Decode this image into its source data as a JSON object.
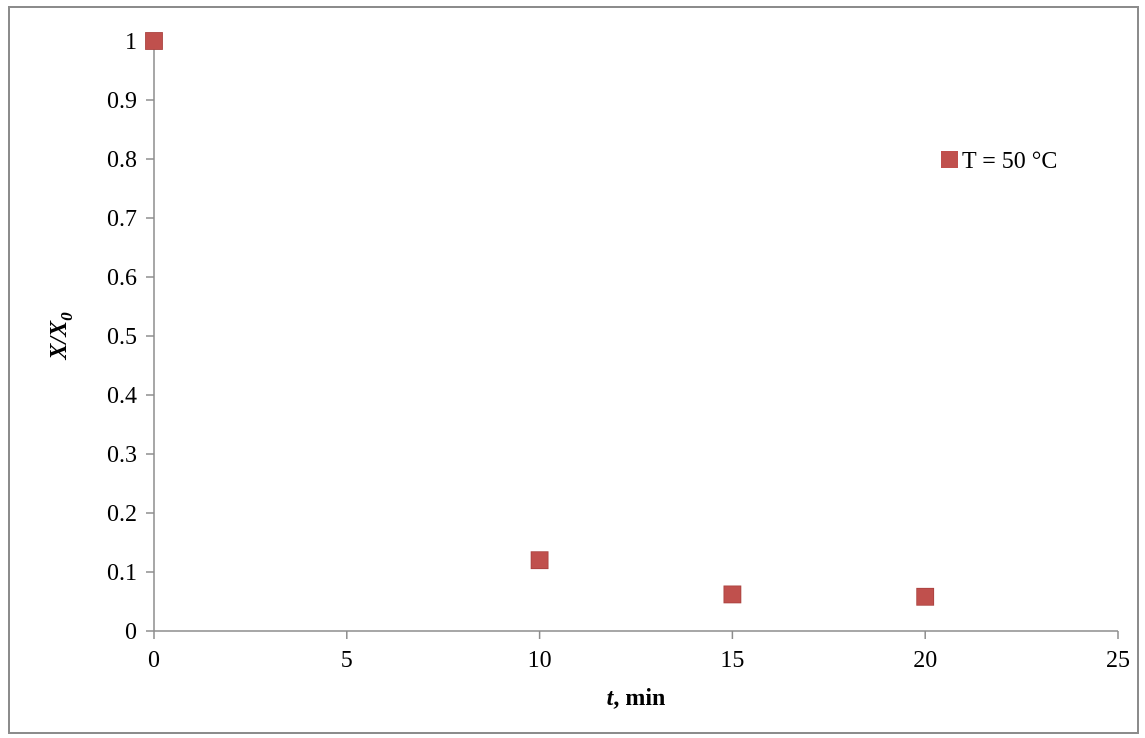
{
  "chart_data": {
    "type": "scatter",
    "title": "",
    "xlabel": {
      "var": "t",
      "rest": ", min"
    },
    "ylabel": {
      "main": "X/X",
      "sub": "0"
    },
    "xlim": [
      0,
      25
    ],
    "ylim": [
      0,
      1
    ],
    "xticks": [
      "0",
      "5",
      "10",
      "15",
      "20",
      "25"
    ],
    "yticks": [
      "0",
      "0.1",
      "0.2",
      "0.3",
      "0.4",
      "0.5",
      "0.6",
      "0.7",
      "0.8",
      "0.9",
      "1"
    ],
    "grid": false,
    "legend_position": "top-right",
    "series": [
      {
        "name": "T = 50 °C",
        "color": "#c0504d",
        "marker": "square",
        "x": [
          0,
          10,
          15,
          20
        ],
        "y": [
          1.0,
          0.12,
          0.062,
          0.058
        ]
      }
    ]
  }
}
